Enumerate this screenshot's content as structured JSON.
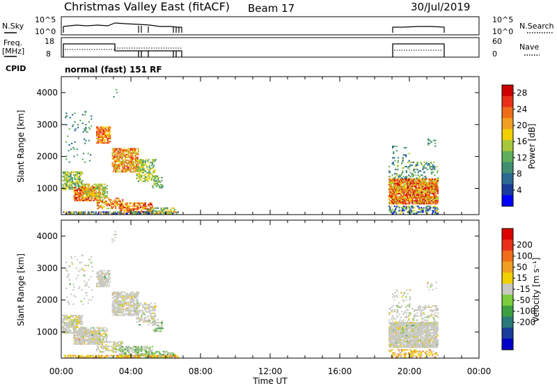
{
  "header": {
    "title": "Christmas Valley East (fitACF)",
    "beam": "Beam 17",
    "date": "30/Jul/2019"
  },
  "panels": {
    "nsky_label": "N.Sky",
    "nsearch_label": "N.Search",
    "nsky_ticks": [
      "10^5",
      "10^0"
    ],
    "freq_label_1": "Freq.",
    "freq_label_2": "[MHz]",
    "freq_ticks": [
      "18",
      "8"
    ],
    "nave_label": "Nave",
    "nave_ticks": [
      "60",
      "0"
    ],
    "cpid_label": "CPID",
    "cpid_text": "normal (fast) 151 RF"
  },
  "colors": {
    "power_scale": [
      "#0000ff",
      "#1a3c9a",
      "#2a6a95",
      "#3f8f70",
      "#5fae5a",
      "#a8c83c",
      "#f0d000",
      "#f0a020",
      "#ef6d1a",
      "#e83018",
      "#cc0000"
    ],
    "velocity_scale": [
      "#0000c8",
      "#1a3c9a",
      "#2a7a7a",
      "#3ca040",
      "#7ccc3c",
      "#c8c8c0",
      "#f0d000",
      "#f0a020",
      "#ef6d1a",
      "#e83018",
      "#dd0000"
    ],
    "line": "#000000",
    "ground_scatter": "#c8c8c0"
  },
  "chart_data": [
    {
      "type": "heatmap",
      "panel": "power",
      "xlabel": "Time UT",
      "ylabel": "Slant Range [km]",
      "xlim_hours": [
        0,
        24
      ],
      "x_ticks": [
        "00:00",
        "04:00",
        "08:00",
        "12:00",
        "16:00",
        "20:00",
        "00:00"
      ],
      "ylim": [
        180,
        4500
      ],
      "y_ticks": [
        1000,
        2000,
        3000,
        4000
      ],
      "colorbar_label": "Power [dB]",
      "colorbar_ticks": [
        4,
        8,
        12,
        16,
        20,
        24,
        28
      ],
      "colorbar_range": [
        0,
        30
      ],
      "observation_windows_hours": [
        [
          0.0,
          6.9
        ],
        [
          18.8,
          21.7
        ]
      ]
    },
    {
      "type": "heatmap",
      "panel": "velocity",
      "xlabel": "Time UT",
      "ylabel": "Slant Range [km]",
      "xlim_hours": [
        0,
        24
      ],
      "x_ticks": [
        "00:00",
        "04:00",
        "08:00",
        "12:00",
        "16:00",
        "20:00",
        "00:00"
      ],
      "ylim": [
        180,
        4500
      ],
      "y_ticks": [
        1000,
        2000,
        3000,
        4000
      ],
      "colorbar_label": "Velocity [m s⁻¹]",
      "colorbar_ticks": [
        "200",
        "100",
        "50",
        "15",
        "-15",
        "-50",
        "-100",
        "-200"
      ],
      "observation_windows_hours": [
        [
          0.0,
          6.9
        ],
        [
          18.8,
          21.7
        ]
      ]
    }
  ]
}
